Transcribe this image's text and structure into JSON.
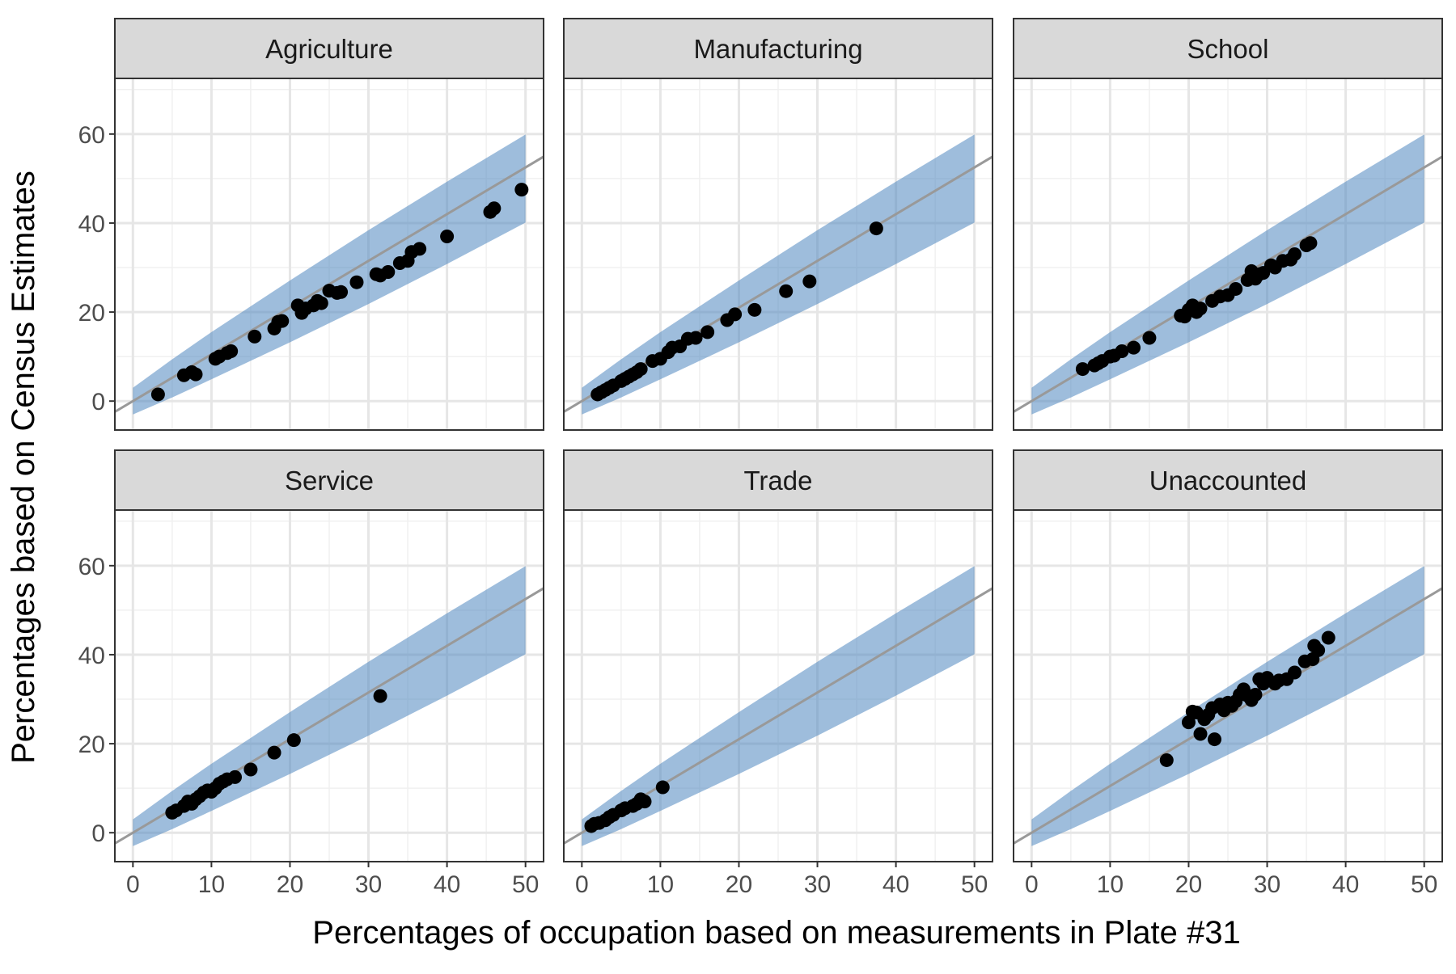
{
  "chart_data": {
    "type": "scatter",
    "xlabel": "Percentages of occupation based on measurements in Plate #31",
    "ylabel": "Percentages based on Census Estimates",
    "xlim": [
      -2.3,
      52.3
    ],
    "ylim": [
      -6.5,
      72.5
    ],
    "x_ticks": [
      0,
      10,
      20,
      30,
      40,
      50
    ],
    "y_ticks": [
      0,
      20,
      40,
      60
    ],
    "grid": true,
    "colors": {
      "band": "#4F86C0",
      "line": "#999999",
      "point": "#000000",
      "strip": "#D9D9D9"
    },
    "reference_line": {
      "slope": 1.05,
      "intercept": 0
    },
    "band": [
      {
        "x": 0,
        "lo": -3,
        "hi": 3
      },
      {
        "x": 5,
        "lo": 0.8,
        "hi": 9.4
      },
      {
        "x": 10,
        "lo": 4.9,
        "hi": 15.5
      },
      {
        "x": 20,
        "lo": 13.2,
        "hi": 27.1
      },
      {
        "x": 30,
        "lo": 21.8,
        "hi": 38.4
      },
      {
        "x": 40,
        "lo": 30.8,
        "hi": 49.3
      },
      {
        "x": 50,
        "lo": 40.1,
        "hi": 59.9
      }
    ],
    "panels": [
      {
        "title": "Agriculture",
        "points": [
          [
            3.2,
            1.5
          ],
          [
            6.5,
            5.8
          ],
          [
            7.5,
            6.5
          ],
          [
            8,
            6
          ],
          [
            10.5,
            9.5
          ],
          [
            11,
            10
          ],
          [
            12,
            10.8
          ],
          [
            12.5,
            11.2
          ],
          [
            15.5,
            14.5
          ],
          [
            18,
            16.3
          ],
          [
            18.5,
            17.8
          ],
          [
            19,
            18
          ],
          [
            21,
            21.5
          ],
          [
            21.5,
            19.8
          ],
          [
            22,
            20.8
          ],
          [
            23,
            21.5
          ],
          [
            23.5,
            22.5
          ],
          [
            24,
            22
          ],
          [
            25,
            24.8
          ],
          [
            26,
            24.3
          ],
          [
            26.5,
            24.5
          ],
          [
            28.5,
            26.7
          ],
          [
            31,
            28.5
          ],
          [
            31.5,
            28.2
          ],
          [
            32.5,
            29
          ],
          [
            34,
            31
          ],
          [
            35,
            31.5
          ],
          [
            35.5,
            33.5
          ],
          [
            36.5,
            34.2
          ],
          [
            40,
            37
          ],
          [
            45.5,
            42.5
          ],
          [
            46,
            43.3
          ],
          [
            49.5,
            47.5
          ]
        ]
      },
      {
        "title": "Manufacturing",
        "points": [
          [
            2,
            1.5
          ],
          [
            2.5,
            2
          ],
          [
            3,
            2.5
          ],
          [
            3.5,
            3
          ],
          [
            4,
            3.5
          ],
          [
            5,
            4.5
          ],
          [
            5.5,
            5
          ],
          [
            6,
            5.5
          ],
          [
            6.5,
            6
          ],
          [
            7,
            6.5
          ],
          [
            7.5,
            7.2
          ],
          [
            9,
            9
          ],
          [
            10,
            9.5
          ],
          [
            11,
            11
          ],
          [
            11.5,
            12
          ],
          [
            12.5,
            12.3
          ],
          [
            13.5,
            14
          ],
          [
            14.5,
            14.2
          ],
          [
            16,
            15.5
          ],
          [
            18.5,
            18.2
          ],
          [
            19.5,
            19.5
          ],
          [
            22,
            20.5
          ],
          [
            26,
            24.7
          ],
          [
            29,
            26.9
          ],
          [
            37.5,
            38.8
          ]
        ]
      },
      {
        "title": "School",
        "points": [
          [
            6.5,
            7.2
          ],
          [
            8,
            8
          ],
          [
            8.5,
            8.5
          ],
          [
            9,
            9
          ],
          [
            10,
            10
          ],
          [
            10.5,
            10.2
          ],
          [
            11.5,
            11.2
          ],
          [
            13,
            12
          ],
          [
            15,
            14.2
          ],
          [
            19,
            19.2
          ],
          [
            19.5,
            19
          ],
          [
            20,
            20.5
          ],
          [
            20.5,
            21.5
          ],
          [
            21,
            20
          ],
          [
            21.5,
            20.8
          ],
          [
            23,
            22.5
          ],
          [
            24,
            23.5
          ],
          [
            25,
            23.8
          ],
          [
            26,
            25.2
          ],
          [
            27.5,
            27.2
          ],
          [
            28,
            29.2
          ],
          [
            28.5,
            27.5
          ],
          [
            29,
            28.5
          ],
          [
            29.5,
            28.8
          ],
          [
            30.5,
            30.5
          ],
          [
            31,
            30
          ],
          [
            32,
            31.5
          ],
          [
            33,
            31.8
          ],
          [
            33.5,
            33
          ],
          [
            35,
            35
          ],
          [
            35.5,
            35.5
          ]
        ]
      },
      {
        "title": "Service",
        "points": [
          [
            5,
            4.5
          ],
          [
            5.5,
            5
          ],
          [
            6.5,
            6
          ],
          [
            7,
            7
          ],
          [
            7.5,
            6.5
          ],
          [
            8,
            7.5
          ],
          [
            8.5,
            8.2
          ],
          [
            9,
            9
          ],
          [
            9.5,
            9.5
          ],
          [
            10,
            9.2
          ],
          [
            10.5,
            10
          ],
          [
            11,
            11
          ],
          [
            11.5,
            11.5
          ],
          [
            12,
            12
          ],
          [
            13,
            12.5
          ],
          [
            15,
            14.2
          ],
          [
            18,
            18
          ],
          [
            20.5,
            20.8
          ],
          [
            31.5,
            30.7
          ]
        ]
      },
      {
        "title": "Trade",
        "points": [
          [
            1.2,
            1.5
          ],
          [
            1.6,
            2
          ],
          [
            2.2,
            2.2
          ],
          [
            3,
            2.8
          ],
          [
            3.5,
            3.5
          ],
          [
            4,
            4
          ],
          [
            5,
            5
          ],
          [
            5.5,
            5.5
          ],
          [
            6.5,
            6
          ],
          [
            7,
            6.5
          ],
          [
            7.5,
            7.5
          ],
          [
            8,
            7
          ],
          [
            10.3,
            10.2
          ]
        ]
      },
      {
        "title": "Unaccounted",
        "points": [
          [
            17.2,
            16.3
          ],
          [
            20,
            24.8
          ],
          [
            20.5,
            27.2
          ],
          [
            21,
            27
          ],
          [
            21.5,
            22.2
          ],
          [
            22,
            25.5
          ],
          [
            22.5,
            26.5
          ],
          [
            23,
            28
          ],
          [
            23.3,
            21
          ],
          [
            24,
            28.8
          ],
          [
            24.5,
            27.5
          ],
          [
            25,
            29.2
          ],
          [
            25.5,
            28.5
          ],
          [
            26,
            29.5
          ],
          [
            26.5,
            31
          ],
          [
            27,
            32.2
          ],
          [
            27.5,
            30.8
          ],
          [
            28,
            29.8
          ],
          [
            28.5,
            31
          ],
          [
            29,
            34.5
          ],
          [
            29.5,
            33.5
          ],
          [
            30,
            34.8
          ],
          [
            31,
            33.5
          ],
          [
            31.5,
            34.2
          ],
          [
            32.5,
            34.5
          ],
          [
            33.5,
            36
          ],
          [
            34.8,
            38.5
          ],
          [
            35.8,
            39
          ],
          [
            36,
            42
          ],
          [
            36.5,
            41
          ],
          [
            37.8,
            43.8
          ]
        ]
      }
    ]
  }
}
